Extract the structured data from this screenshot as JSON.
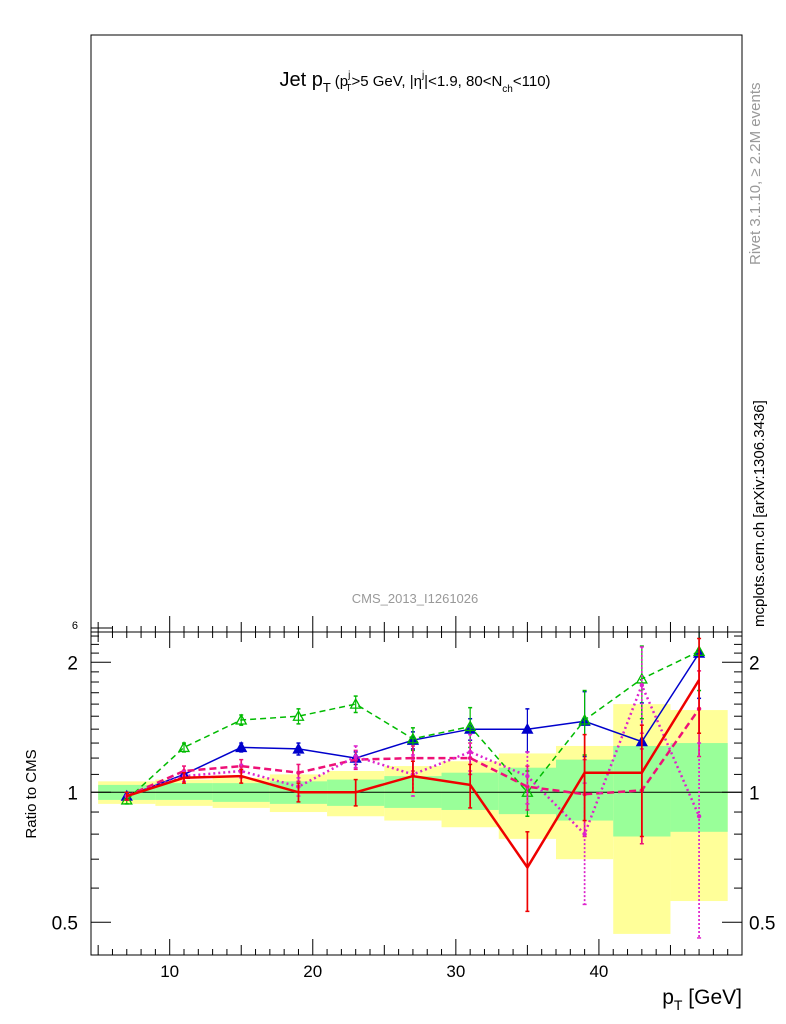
{
  "title": {
    "main": "Jet p",
    "main_sub": "T",
    "cond_open": "(p",
    "cond_pt_sup": "j",
    "cond_pt_sub": "T",
    "cond_mid": ">5 GeV, |η",
    "cond_eta_sup": "j",
    "cond_mid2": "|<1.9, 80<N",
    "cond_nch_sub": "ch",
    "cond_close": "<110)"
  },
  "side_labels": {
    "rivet": "Rivet 3.1.10, ≥ 2.2M events",
    "mcplots": "mcplots.cern.ch [arXiv:1306.3436]"
  },
  "analysis_label": "CMS_2013_I1261026",
  "main_panel_tick": "6",
  "chart_data": {
    "type": "line",
    "xlabel_main": "p",
    "xlabel_sub": "T",
    "xlabel_unit": " [GeV]",
    "ylabel": "Ratio to CMS",
    "xlim": [
      4.5,
      50.0
    ],
    "ylim": [
      0.42,
      2.35
    ],
    "y_scale": "log",
    "x_ticks": [
      10,
      20,
      30,
      40
    ],
    "x_tick_labels": [
      "10",
      "20",
      "30",
      "40"
    ],
    "y_ticks": [
      0.5,
      1,
      2
    ],
    "y_tick_labels": [
      "0.5",
      "1",
      "2"
    ],
    "bins": [
      {
        "lo": 5,
        "hi": 9
      },
      {
        "lo": 9,
        "hi": 13
      },
      {
        "lo": 13,
        "hi": 17
      },
      {
        "lo": 17,
        "hi": 21
      },
      {
        "lo": 21,
        "hi": 25
      },
      {
        "lo": 25,
        "hi": 29
      },
      {
        "lo": 29,
        "hi": 33
      },
      {
        "lo": 33,
        "hi": 37
      },
      {
        "lo": 37,
        "hi": 41
      },
      {
        "lo": 41,
        "hi": 45
      },
      {
        "lo": 45,
        "hi": 49
      }
    ],
    "band_yellow": [
      [
        0.94,
        1.06
      ],
      [
        0.93,
        1.07
      ],
      [
        0.92,
        1.08
      ],
      [
        0.9,
        1.1
      ],
      [
        0.88,
        1.12
      ],
      [
        0.86,
        1.15
      ],
      [
        0.83,
        1.18
      ],
      [
        0.78,
        1.23
      ],
      [
        0.7,
        1.28
      ],
      [
        0.47,
        1.6
      ],
      [
        0.56,
        1.55
      ]
    ],
    "band_green": [
      [
        0.96,
        1.04
      ],
      [
        0.96,
        1.05
      ],
      [
        0.95,
        1.05
      ],
      [
        0.94,
        1.06
      ],
      [
        0.93,
        1.07
      ],
      [
        0.92,
        1.09
      ],
      [
        0.91,
        1.11
      ],
      [
        0.89,
        1.14
      ],
      [
        0.86,
        1.19
      ],
      [
        0.79,
        1.28
      ],
      [
        0.81,
        1.3
      ]
    ],
    "series": [
      {
        "color": "#0000cc",
        "dash": "",
        "width": 1.5,
        "marker": "triangle-filled",
        "x": [
          7,
          11,
          15,
          19,
          23,
          27,
          31,
          35,
          39,
          43,
          47
        ],
        "y": [
          0.98,
          1.1,
          1.27,
          1.26,
          1.2,
          1.32,
          1.4,
          1.4,
          1.46,
          1.31,
          2.1
        ],
        "err": [
          0.02,
          0.02,
          0.03,
          0.04,
          0.04,
          0.06,
          0.08,
          0.16,
          0.25,
          0.3,
          0.45
        ]
      },
      {
        "color": "#00bb00",
        "dash": "6,4",
        "width": 1.5,
        "marker": "triangle-open",
        "x": [
          7,
          11,
          15,
          19,
          23,
          27,
          31,
          35,
          39,
          43,
          47
        ],
        "y": [
          0.96,
          1.27,
          1.47,
          1.5,
          1.6,
          1.33,
          1.42,
          1.0,
          1.47,
          1.83,
          2.12
        ],
        "err": [
          0.02,
          0.03,
          0.04,
          0.06,
          0.07,
          0.08,
          0.15,
          0.12,
          0.25,
          0.35,
          0.4
        ]
      },
      {
        "color": "#ee1177",
        "dash": "7,4",
        "width": 2.5,
        "marker": "dot",
        "x": [
          7,
          11,
          15,
          19,
          23,
          27,
          31,
          35,
          39,
          43,
          47
        ],
        "y": [
          0.98,
          1.12,
          1.15,
          1.11,
          1.19,
          1.2,
          1.2,
          1.03,
          0.99,
          1.01,
          1.56
        ],
        "err": [
          0.02,
          0.03,
          0.04,
          0.05,
          0.06,
          0.08,
          0.1,
          0.12,
          0.2,
          0.25,
          0.35
        ]
      },
      {
        "color": "#dd22cc",
        "dash": "2,3",
        "width": 2.5,
        "marker": "dot",
        "x": [
          7,
          11,
          15,
          19,
          23,
          27,
          31,
          35,
          39,
          43,
          47
        ],
        "y": [
          0.98,
          1.09,
          1.12,
          1.03,
          1.21,
          1.1,
          1.24,
          1.09,
          0.8,
          1.77,
          0.88
        ],
        "err": [
          0.02,
          0.03,
          0.04,
          0.05,
          0.07,
          0.12,
          0.12,
          0.15,
          0.25,
          0.4,
          0.42
        ]
      },
      {
        "color": "#ee0000",
        "dash": "",
        "width": 2.5,
        "marker": "none",
        "x": [
          7,
          11,
          15,
          19,
          23,
          27,
          31,
          35,
          39,
          43,
          47
        ],
        "y": [
          0.98,
          1.08,
          1.09,
          1.0,
          1.0,
          1.09,
          1.04,
          0.67,
          1.11,
          1.11,
          1.82
        ],
        "err": [
          0.02,
          0.03,
          0.04,
          0.05,
          0.07,
          0.09,
          0.12,
          0.14,
          0.25,
          0.32,
          0.45
        ]
      }
    ]
  }
}
